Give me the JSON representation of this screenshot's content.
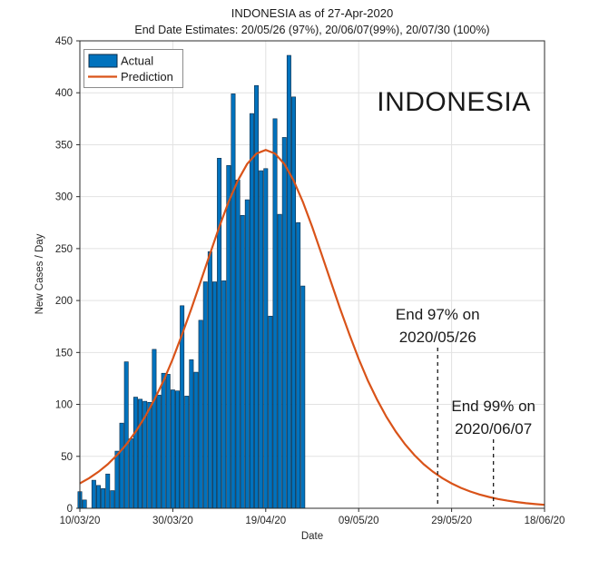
{
  "figure": {
    "title": "INDONESIA as of 27-Apr-2020",
    "subtitle": "End Date Estimates: 20/05/26 (97%), 20/06/07(99%), 20/07/30 (100%)",
    "watermark": "INDONESIA"
  },
  "chart_data": {
    "type": "bar",
    "title": "INDONESIA as of 27-Apr-2020",
    "subtitle": "End Date Estimates: 20/05/26 (97%), 20/06/07(99%), 20/07/30 (100%)",
    "xlabel": "Date",
    "ylabel": "New Cases / Day",
    "ylim": [
      0,
      450
    ],
    "yticks": [
      0,
      50,
      100,
      150,
      200,
      250,
      300,
      350,
      400,
      450
    ],
    "xlim_days": [
      0,
      100
    ],
    "xticks": [
      {
        "day": 0,
        "label": "10/03/20"
      },
      {
        "day": 20,
        "label": "30/03/20"
      },
      {
        "day": 40,
        "label": "19/04/20"
      },
      {
        "day": 60,
        "label": "09/05/20"
      },
      {
        "day": 80,
        "label": "29/05/20"
      },
      {
        "day": 100,
        "label": "18/06/20"
      }
    ],
    "grid": true,
    "legend": {
      "position": "top-left",
      "entries": [
        {
          "label": "Actual",
          "type": "bar",
          "color": "#0072BD"
        },
        {
          "label": "Prediction",
          "type": "line",
          "color": "#D95319"
        }
      ]
    },
    "series": [
      {
        "name": "Actual",
        "kind": "bar",
        "color": "#0072BD",
        "start_date": "10/03/20",
        "end_date": "27/04/20",
        "values": [
          16,
          8,
          0,
          27,
          22,
          19,
          33,
          17,
          55,
          82,
          141,
          67,
          107,
          105,
          103,
          102,
          153,
          109,
          130,
          129,
          114,
          113,
          195,
          108,
          143,
          131,
          181,
          218,
          247,
          218,
          337,
          219,
          330,
          399,
          316,
          282,
          297,
          380,
          407,
          325,
          327,
          185,
          375,
          283,
          357,
          436,
          396,
          275,
          214
        ]
      },
      {
        "name": "Prediction",
        "kind": "line",
        "color": "#D95319",
        "peak_value": 345,
        "peak_day": 40,
        "model": "value = 345 * sech((day-40)/19.9)^2",
        "points": [
          [
            0,
            23.9
          ],
          [
            2,
            29.0
          ],
          [
            4,
            35.1
          ],
          [
            6,
            42.4
          ],
          [
            8,
            51.2
          ],
          [
            10,
            61.5
          ],
          [
            12,
            73.7
          ],
          [
            14,
            87.8
          ],
          [
            16,
            104.2
          ],
          [
            18,
            122.8
          ],
          [
            20,
            143.8
          ],
          [
            22,
            167.3
          ],
          [
            24,
            192.2
          ],
          [
            26,
            218.4
          ],
          [
            28,
            244.9
          ],
          [
            30,
            270.9
          ],
          [
            32,
            294.8
          ],
          [
            34,
            315.5
          ],
          [
            36,
            331.4
          ],
          [
            38,
            341.5
          ],
          [
            40,
            345
          ],
          [
            42,
            341.5
          ],
          [
            44,
            331.4
          ],
          [
            46,
            315.5
          ],
          [
            48,
            294.8
          ],
          [
            50,
            270.9
          ],
          [
            52,
            244.9
          ],
          [
            54,
            218.4
          ],
          [
            56,
            192.2
          ],
          [
            58,
            167.3
          ],
          [
            60,
            143.8
          ],
          [
            62,
            122.8
          ],
          [
            64,
            104.2
          ],
          [
            66,
            87.8
          ],
          [
            68,
            73.7
          ],
          [
            70,
            61.5
          ],
          [
            72,
            51.2
          ],
          [
            74,
            42.4
          ],
          [
            76,
            35.1
          ],
          [
            78,
            29.0
          ],
          [
            80,
            23.9
          ],
          [
            82,
            19.7
          ],
          [
            84,
            16.2
          ],
          [
            86,
            13.3
          ],
          [
            88,
            10.9
          ],
          [
            90,
            8.9
          ],
          [
            92,
            7.3
          ],
          [
            94,
            6.0
          ],
          [
            96,
            4.9
          ],
          [
            98,
            4.0
          ],
          [
            100,
            3.3
          ]
        ]
      }
    ],
    "annotations": [
      {
        "line1": "End 97% on",
        "line2": "2020/05/26",
        "day": 77,
        "percent": "97%",
        "date": "2020/05/26"
      },
      {
        "line1": "End 99% on",
        "line2": "2020/06/07",
        "day": 89,
        "percent": "99%",
        "date": "2020/06/07"
      }
    ],
    "colors": {
      "bar_fill": "#0072BD",
      "bar_edge": "#0a2a45",
      "prediction_line": "#D95319",
      "grid": "#e2e2e2",
      "axis_box": "#2b2b2b",
      "dashed_line": "#1a1a1a",
      "text": "#1a1a1a"
    }
  }
}
